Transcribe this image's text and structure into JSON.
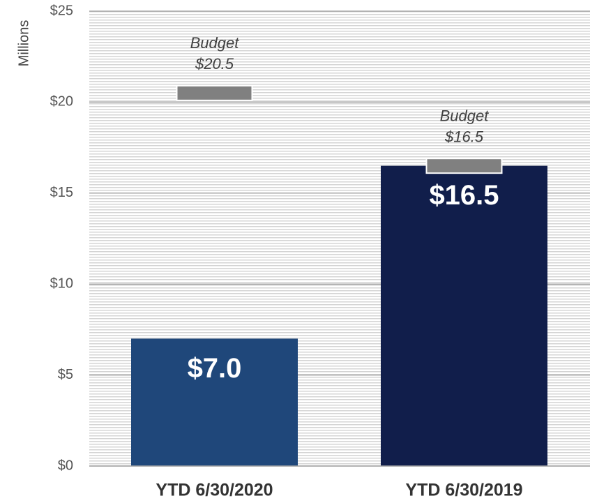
{
  "chart_data": {
    "type": "bar",
    "y_label": "Millions",
    "categories": [
      "YTD 6/30/2020",
      "YTD 6/30/2019"
    ],
    "values": [
      7.0,
      16.5
    ],
    "value_labels": [
      "$7.0",
      "$16.5"
    ],
    "colors": [
      "#1f477a",
      "#111e4b"
    ],
    "budget": {
      "label": "Budget",
      "values": [
        20.5,
        16.5
      ],
      "value_labels": [
        "$20.5",
        "$16.5"
      ],
      "color": "#808080"
    },
    "ylim": [
      0,
      25
    ],
    "yticks": [
      {
        "value": 0,
        "label": "$0"
      },
      {
        "value": 5,
        "label": "$5"
      },
      {
        "value": 10,
        "label": "$10"
      },
      {
        "value": 15,
        "label": "$15"
      },
      {
        "value": 20,
        "label": "$20"
      },
      {
        "value": 25,
        "label": "$25"
      }
    ],
    "grid": true
  }
}
